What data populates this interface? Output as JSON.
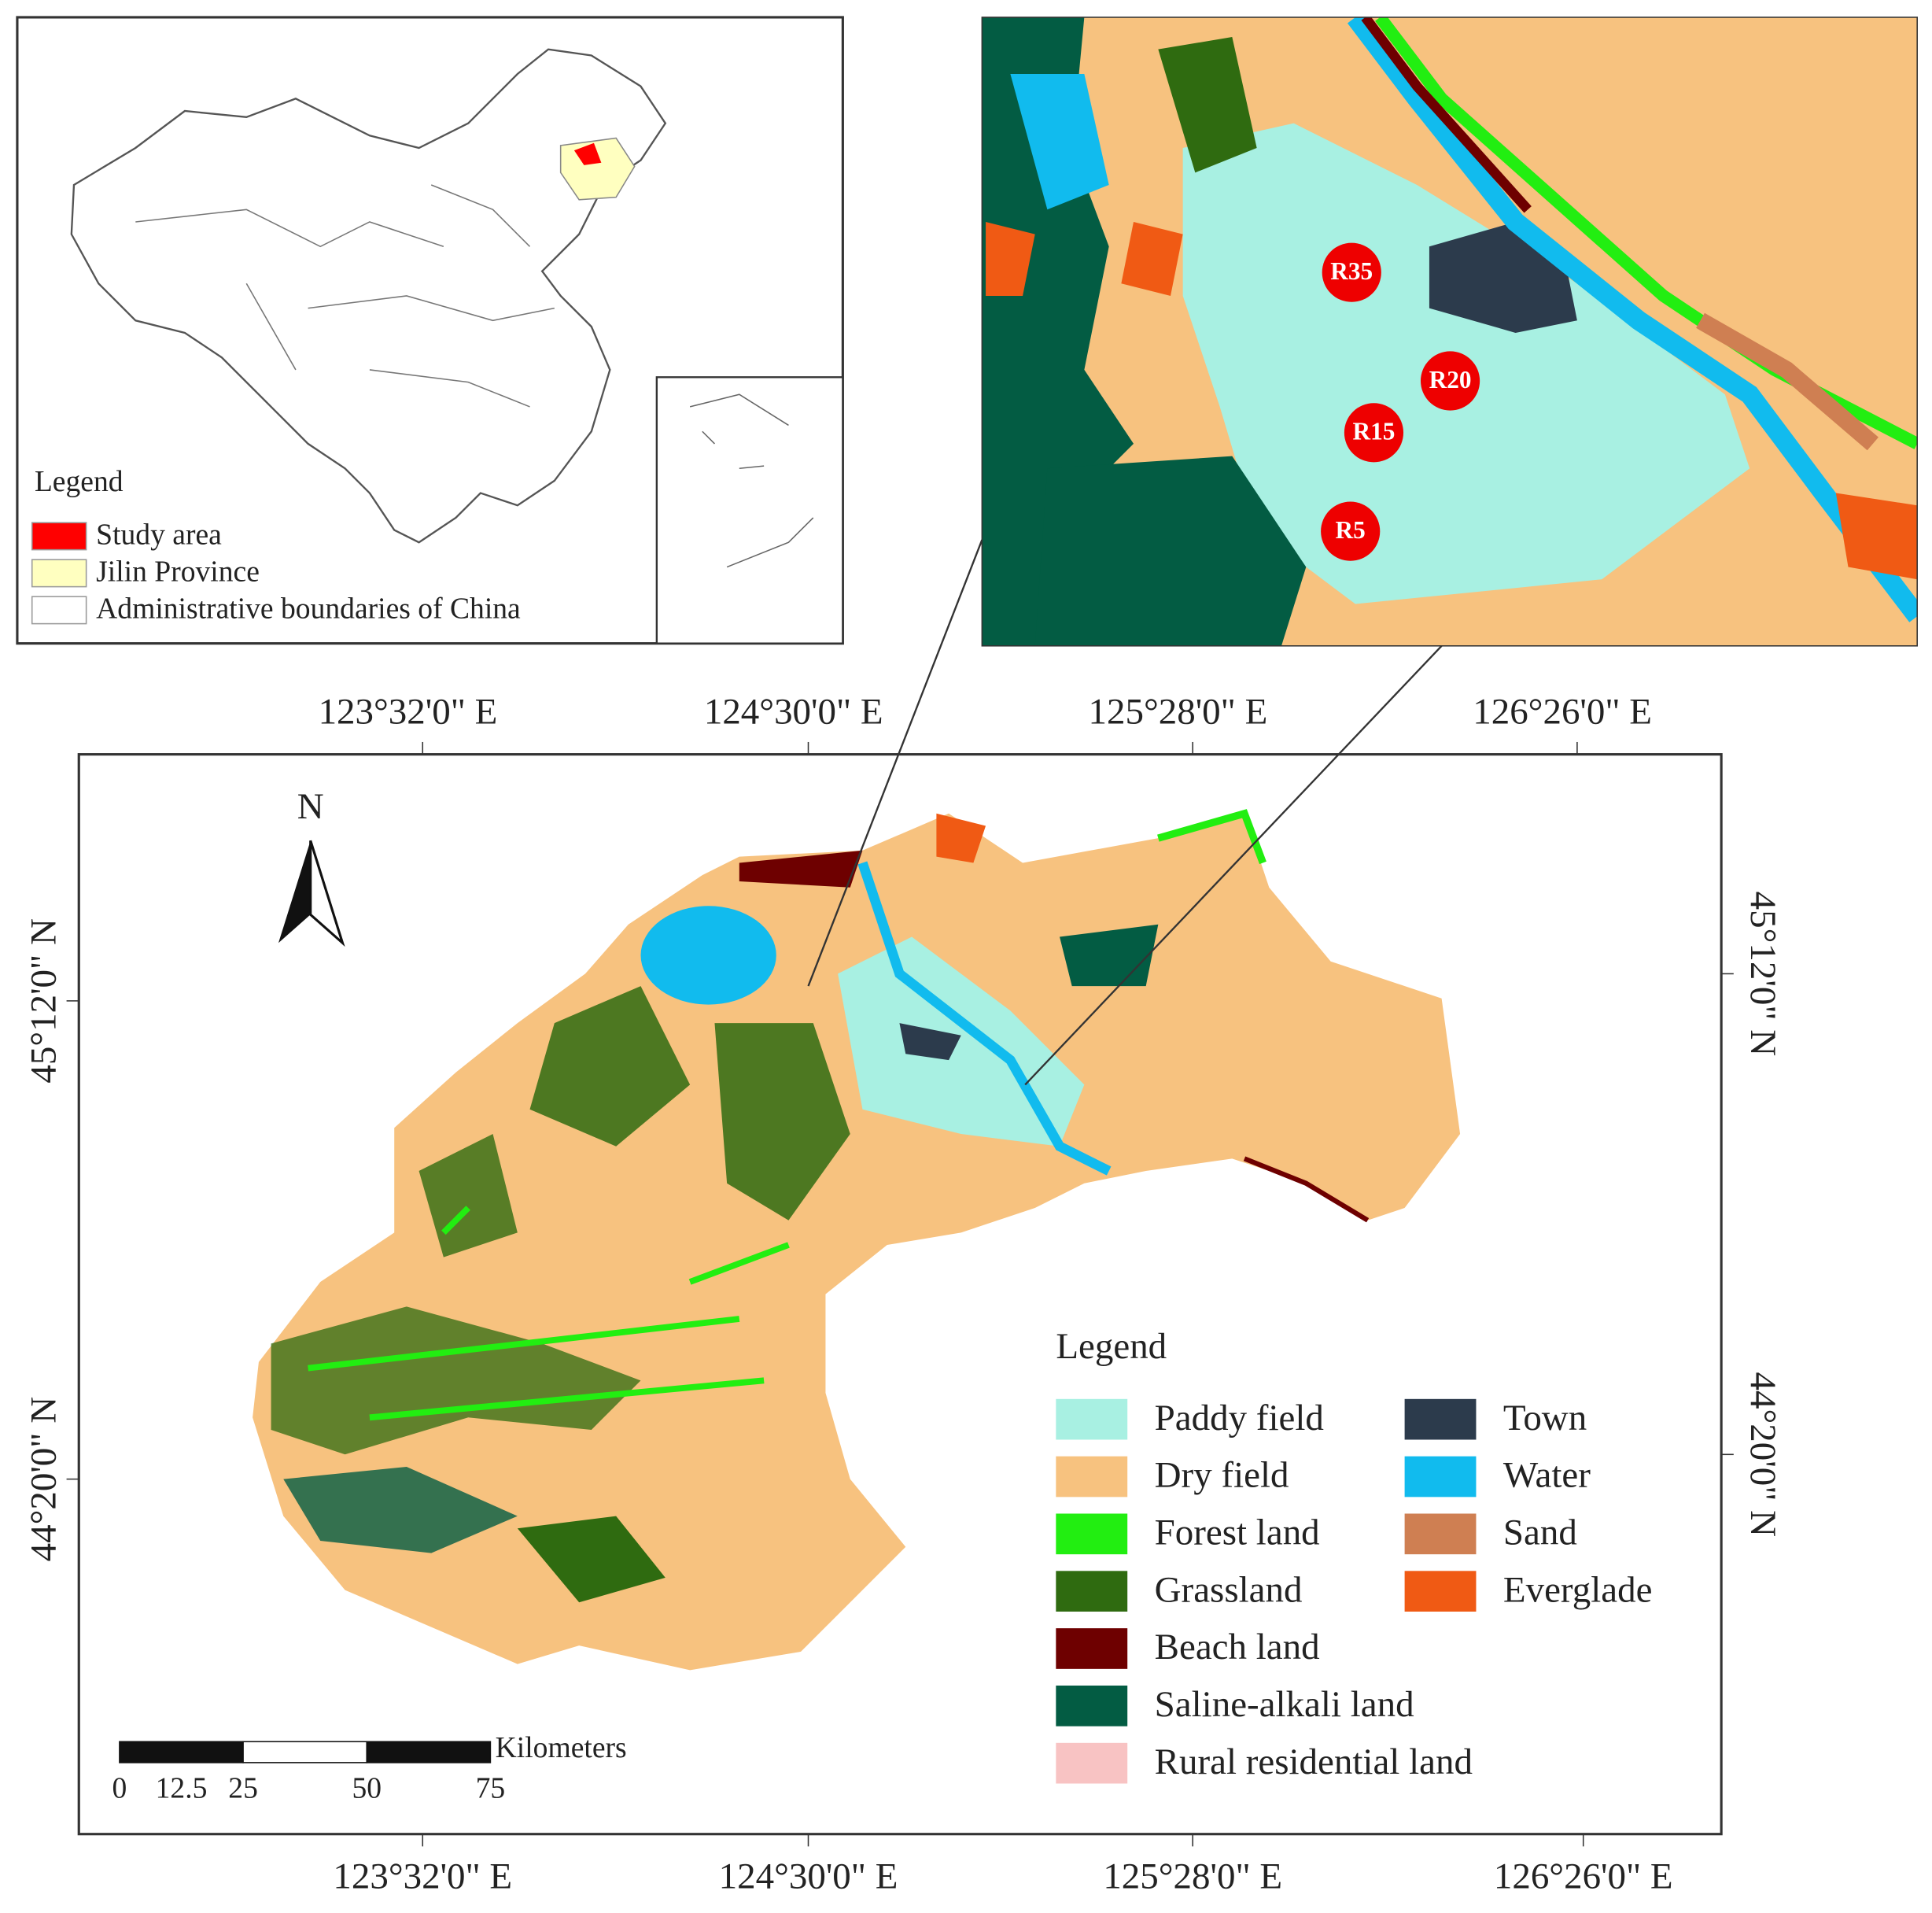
{
  "inset_map": {
    "legend": {
      "title": "Legend",
      "items": [
        {
          "label": "Study area",
          "color": "#ff0000"
        },
        {
          "label": "Jilin Province",
          "color": "#ffffc0"
        },
        {
          "label": "Administrative boundaries of China",
          "color": "#ffffff"
        }
      ]
    }
  },
  "zoom_view": {
    "sample_points": [
      "R35",
      "R20",
      "R15",
      "R5"
    ]
  },
  "main_map": {
    "top_labels": [
      "123°32'0\" E",
      "124°30'0\" E",
      "125°28'0\" E",
      "126°26'0\" E"
    ],
    "bottom_labels": [
      "123°32'0\" E",
      "124°30'0\" E",
      "125°28'0\" E",
      "126°26'0\" E"
    ],
    "left_labels": [
      "45°12'0\" N",
      "44°20'0\" N"
    ],
    "right_labels": [
      "45°12'0\" N",
      "44°20'0\" N"
    ],
    "north": "N",
    "legend": {
      "title": "Legend",
      "items": [
        {
          "label": "Paddy field",
          "color": "#a8f0e2"
        },
        {
          "label": "Dry field",
          "color": "#f7c27f"
        },
        {
          "label": "Forest land",
          "color": "#22ee11"
        },
        {
          "label": "Grassland",
          "color": "#2f6b10"
        },
        {
          "label": "Beach land",
          "color": "#6e0000"
        },
        {
          "label": "Saline-alkali land",
          "color": "#035c43"
        },
        {
          "label": "Rural residential land",
          "color": "#f8c3c3"
        },
        {
          "label": "Town",
          "color": "#2c3b4c"
        },
        {
          "label": "Water",
          "color": "#11bbee"
        },
        {
          "label": "Sand",
          "color": "#cf7f52"
        },
        {
          "label": "Everglade",
          "color": "#f05a14"
        }
      ]
    },
    "scale_bar": {
      "unit": "Kilometers",
      "ticks": [
        0,
        12.5,
        25,
        50,
        75
      ]
    }
  }
}
